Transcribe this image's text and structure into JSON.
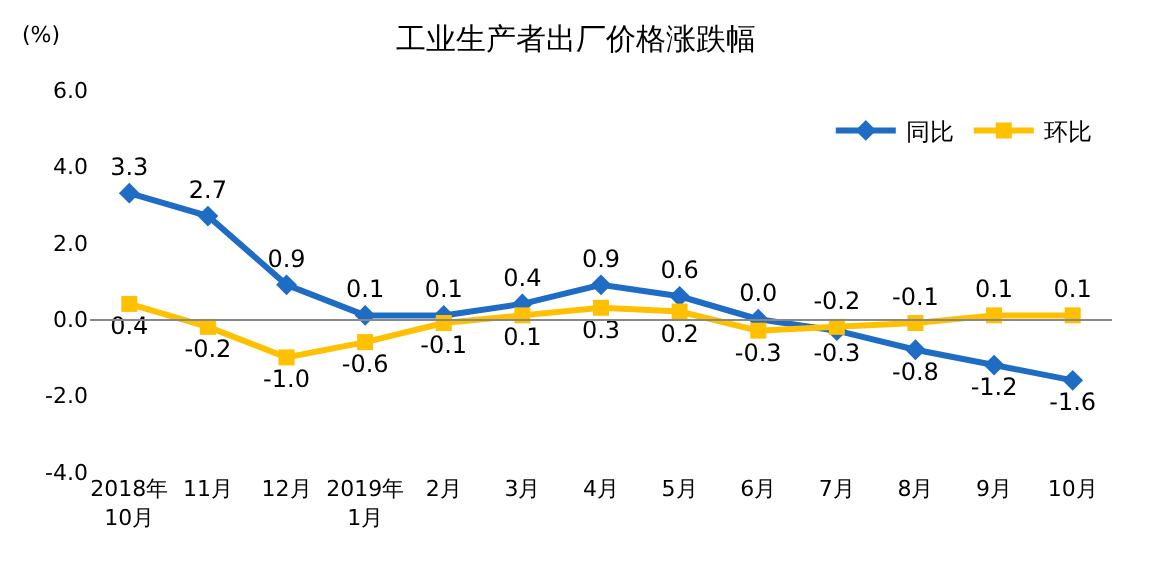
{
  "chart_data": {
    "type": "line",
    "title": "工业生产者出厂价格涨跌幅",
    "ylabel": "(%)",
    "categories": [
      "2018年\n10月",
      "11月",
      "12月",
      "2019年\n1月",
      "2月",
      "3月",
      "4月",
      "5月",
      "6月",
      "7月",
      "8月",
      "9月",
      "10月"
    ],
    "series": [
      {
        "name": "同比",
        "color": "#1f6cc4",
        "marker": "diamond",
        "values": [
          3.3,
          2.7,
          0.9,
          0.1,
          0.1,
          0.4,
          0.9,
          0.6,
          0.0,
          -0.3,
          -0.8,
          -1.2,
          -1.6
        ],
        "value_labels": [
          "3.3",
          "2.7",
          "0.9",
          "0.1",
          "0.1",
          "0.4",
          "0.9",
          "0.6",
          "0.0",
          "-0.3",
          "-0.8",
          "-1.2",
          "-1.6"
        ]
      },
      {
        "name": "环比",
        "color": "#ffc000",
        "marker": "square",
        "values": [
          0.4,
          -0.2,
          -1.0,
          -0.6,
          -0.1,
          0.1,
          0.3,
          0.2,
          -0.3,
          -0.2,
          -0.1,
          0.1,
          0.1
        ],
        "value_labels": [
          "0.4",
          "-0.2",
          "-1.0",
          "-0.6",
          "-0.1",
          "0.1",
          "0.3",
          "0.2",
          "-0.3",
          "-0.2",
          "-0.1",
          "0.1",
          "0.1"
        ]
      }
    ],
    "ylim": [
      -4.0,
      6.0
    ],
    "yticks": [
      {
        "value": -4,
        "label": "-4.0"
      },
      {
        "value": -2,
        "label": "-2.0"
      },
      {
        "value": 0,
        "label": "0.0"
      },
      {
        "value": 2,
        "label": "2.0"
      },
      {
        "value": 4,
        "label": "4.0"
      },
      {
        "value": 6,
        "label": "6.0"
      }
    ],
    "legend": "top right",
    "line_style": "solid"
  }
}
